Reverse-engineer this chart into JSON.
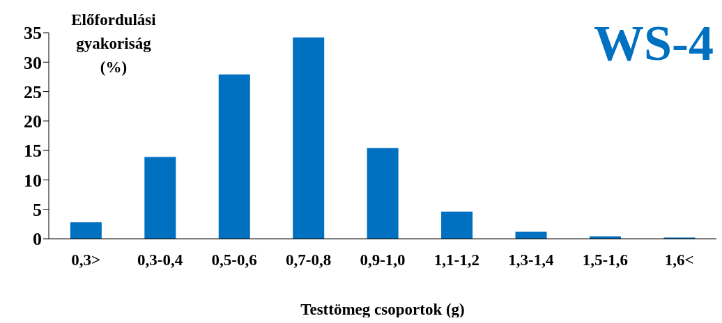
{
  "chart_data": {
    "type": "bar",
    "title": "WS-4",
    "ylabel": "Előfordulási gyakoriság (%)",
    "xlabel": "Testtömeg csoportok (g)",
    "categories": [
      "0,3>",
      "0,3-0,4",
      "0,5-0,6",
      "0,7-0,8",
      "0,9-1,0",
      "1,1-1,2",
      "1,3-1,4",
      "1,5-1,6",
      "1,6<"
    ],
    "values": [
      2.8,
      13.9,
      27.9,
      34.2,
      15.4,
      4.6,
      1.2,
      0.4,
      0.2
    ],
    "color": "#0070c0",
    "ylim": [
      0,
      35
    ],
    "yticks": [
      0,
      5,
      10,
      15,
      20,
      25,
      30,
      35
    ],
    "grid": false,
    "legend": false
  }
}
